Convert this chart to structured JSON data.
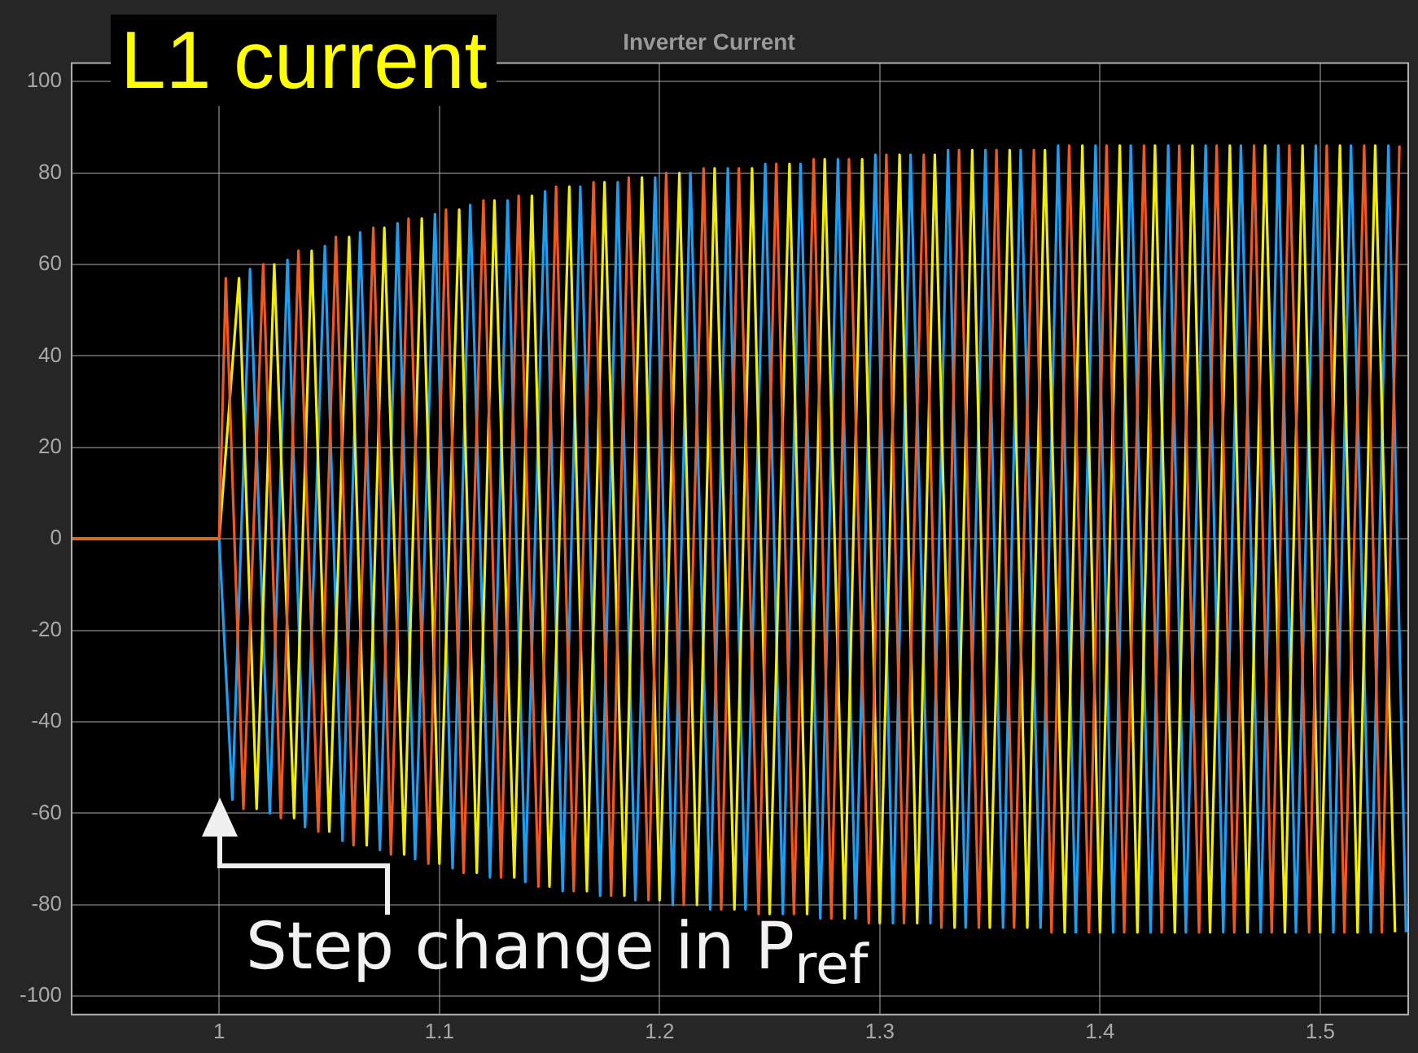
{
  "chart_data": {
    "type": "line",
    "title": "Inverter Current",
    "xlim": [
      0.933,
      1.54
    ],
    "xticks": [
      1,
      1.1,
      1.2,
      1.3,
      1.4,
      1.5
    ],
    "ylim": [
      -104,
      104
    ],
    "yticks": [
      -100,
      -80,
      -60,
      -40,
      -20,
      0,
      20,
      40,
      60,
      80,
      100
    ],
    "grid": true,
    "legend": false,
    "marker": "none",
    "line_style": "solid",
    "annotations": [
      "L1 current",
      "Step change in P$_{ref}$"
    ],
    "series": [
      {
        "color": "#f0591e",
        "x": [
          0.933,
          1.0,
          1.003,
          1.011,
          1.02,
          1.028,
          1.036,
          1.045,
          1.053,
          1.061,
          1.07,
          1.078,
          1.086,
          1.095,
          1.103,
          1.111,
          1.12,
          1.128,
          1.136,
          1.145,
          1.153,
          1.161,
          1.17,
          1.178,
          1.186,
          1.195,
          1.203,
          1.211,
          1.22,
          1.228,
          1.236,
          1.245,
          1.253,
          1.261,
          1.27,
          1.278,
          1.286,
          1.295,
          1.303,
          1.311,
          1.32,
          1.328,
          1.336,
          1.345,
          1.353,
          1.361,
          1.37,
          1.378,
          1.386,
          1.395,
          1.403,
          1.411,
          1.42,
          1.428,
          1.436,
          1.445,
          1.453,
          1.461,
          1.47,
          1.478,
          1.486,
          1.495,
          1.503,
          1.511,
          1.52,
          1.528,
          1.536
        ],
        "values": [
          0,
          0,
          57,
          -59,
          60,
          -61,
          63,
          -64,
          66,
          -67,
          68,
          -69,
          70,
          -71,
          72,
          -73,
          74,
          -74,
          75,
          -76,
          77,
          -77,
          78,
          -78,
          79,
          -79,
          80,
          -80,
          81,
          -81,
          81,
          -82,
          82,
          -82,
          83,
          -83,
          83,
          -84,
          84,
          -84,
          84,
          -85,
          85,
          -85,
          85,
          -85,
          85,
          -86,
          86,
          -86,
          86,
          -86,
          86,
          -86,
          86,
          -86,
          86,
          -86,
          86,
          -86,
          86,
          -86,
          86,
          -86,
          86,
          -86,
          86
        ]
      },
      {
        "color": "#f2ee00",
        "x": [
          0.933,
          1.0,
          1.009,
          1.017,
          1.025,
          1.034,
          1.042,
          1.05,
          1.059,
          1.067,
          1.075,
          1.084,
          1.092,
          1.1,
          1.109,
          1.117,
          1.125,
          1.134,
          1.142,
          1.15,
          1.159,
          1.167,
          1.175,
          1.184,
          1.192,
          1.2,
          1.209,
          1.217,
          1.225,
          1.234,
          1.242,
          1.25,
          1.259,
          1.267,
          1.275,
          1.284,
          1.292,
          1.3,
          1.309,
          1.317,
          1.325,
          1.334,
          1.342,
          1.35,
          1.359,
          1.367,
          1.375,
          1.384,
          1.392,
          1.4,
          1.409,
          1.417,
          1.425,
          1.434,
          1.442,
          1.45,
          1.459,
          1.467,
          1.475,
          1.484,
          1.492,
          1.5,
          1.509,
          1.517,
          1.525,
          1.534
        ],
        "values": [
          0,
          0,
          57,
          -59,
          60,
          -61,
          63,
          -64,
          66,
          -67,
          68,
          -69,
          70,
          -71,
          72,
          -73,
          74,
          -74,
          75,
          -76,
          77,
          -77,
          78,
          -78,
          79,
          -79,
          80,
          -80,
          81,
          -81,
          81,
          -82,
          82,
          -82,
          83,
          -83,
          83,
          -84,
          84,
          -84,
          84,
          -85,
          85,
          -85,
          85,
          -85,
          85,
          -86,
          86,
          -86,
          86,
          -86,
          86,
          -86,
          86,
          -86,
          86,
          -86,
          86,
          -86,
          86,
          -86,
          86,
          -86,
          86,
          -86
        ]
      },
      {
        "color": "#1c9ff0",
        "x": [
          0.933,
          1.0,
          1.006,
          1.014,
          1.023,
          1.031,
          1.039,
          1.048,
          1.056,
          1.064,
          1.073,
          1.081,
          1.089,
          1.098,
          1.106,
          1.114,
          1.123,
          1.131,
          1.139,
          1.148,
          1.156,
          1.164,
          1.173,
          1.181,
          1.189,
          1.198,
          1.206,
          1.214,
          1.223,
          1.231,
          1.239,
          1.248,
          1.256,
          1.264,
          1.273,
          1.281,
          1.289,
          1.298,
          1.306,
          1.314,
          1.323,
          1.331,
          1.339,
          1.348,
          1.356,
          1.364,
          1.373,
          1.381,
          1.389,
          1.398,
          1.406,
          1.414,
          1.423,
          1.431,
          1.439,
          1.448,
          1.456,
          1.464,
          1.473,
          1.481,
          1.489,
          1.498,
          1.506,
          1.514,
          1.523,
          1.531,
          1.539
        ],
        "values": [
          0,
          0,
          -57,
          59,
          -60,
          61,
          -63,
          64,
          -66,
          67,
          -68,
          69,
          -70,
          71,
          -72,
          73,
          -74,
          74,
          -75,
          76,
          -77,
          77,
          -78,
          78,
          -79,
          79,
          -80,
          80,
          -81,
          81,
          -81,
          82,
          -82,
          82,
          -83,
          83,
          -83,
          84,
          -84,
          84,
          -84,
          85,
          -85,
          85,
          -85,
          85,
          -85,
          86,
          -86,
          86,
          -86,
          86,
          -86,
          86,
          -86,
          86,
          -86,
          86,
          -86,
          86,
          -86,
          86,
          -86,
          86,
          -86,
          86,
          -86
        ]
      }
    ]
  }
}
